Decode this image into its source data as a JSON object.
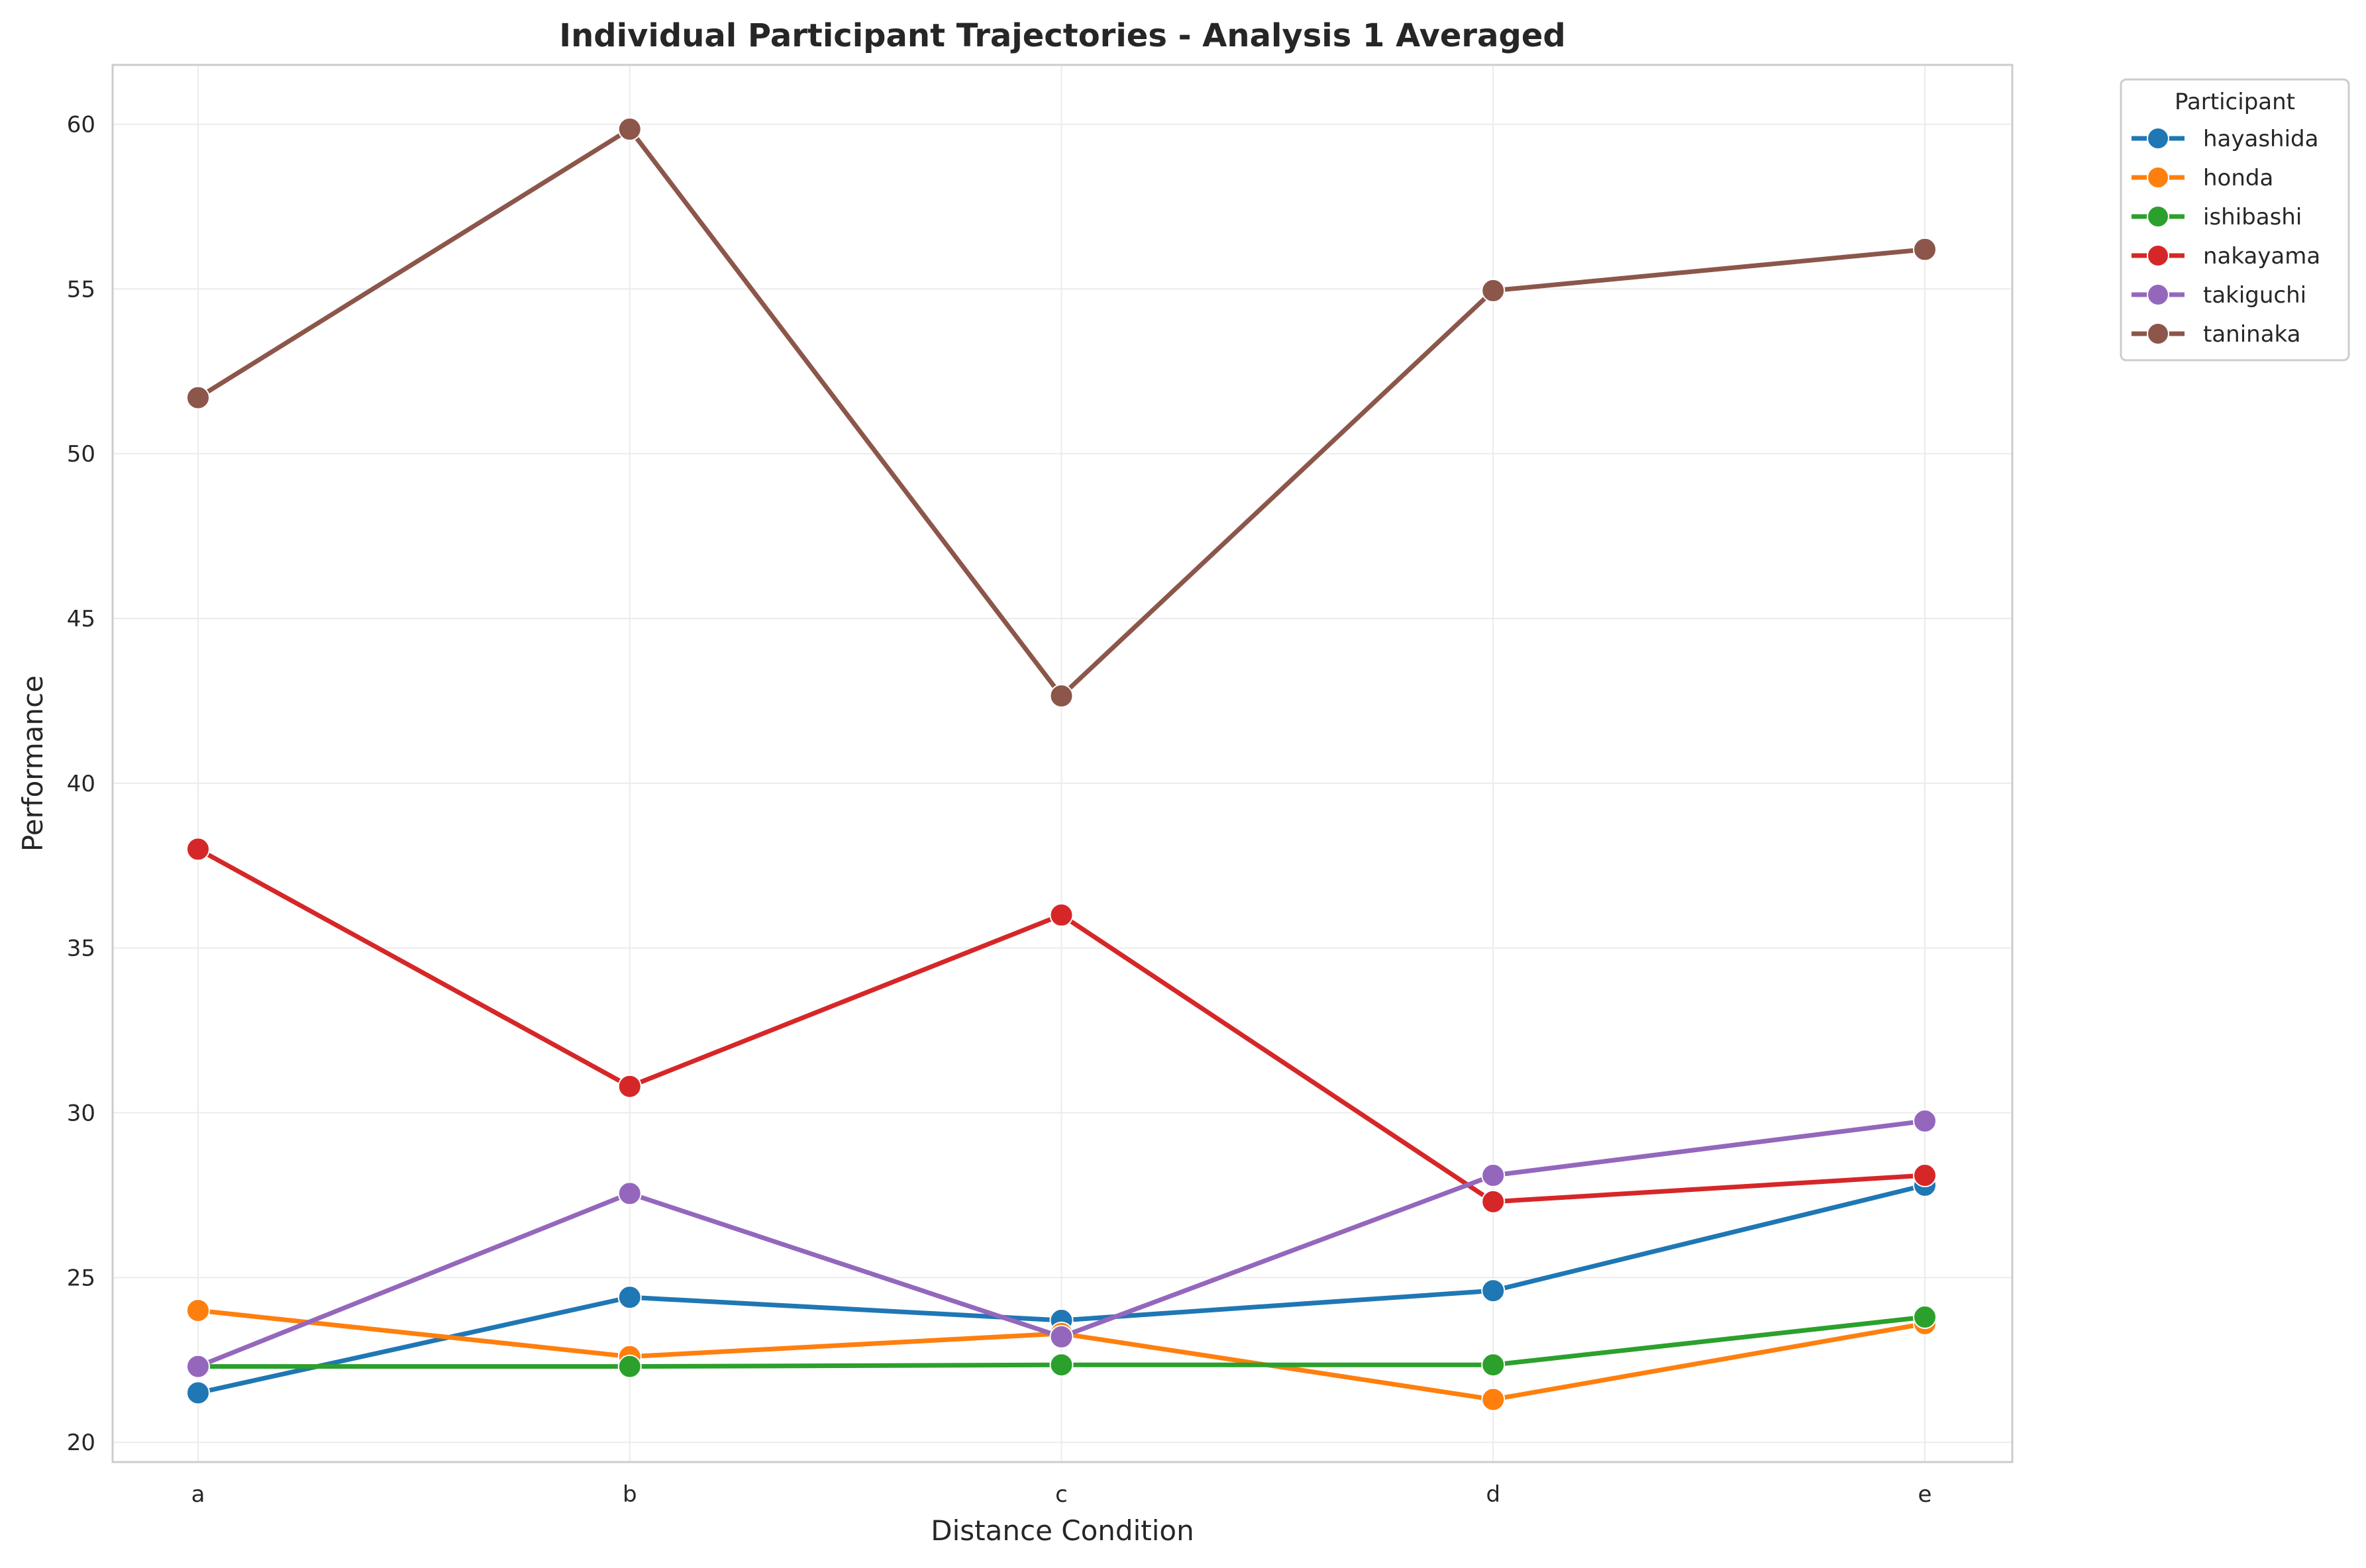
{
  "chart_data": {
    "type": "line",
    "title": "Individual Participant Trajectories - Analysis 1 Averaged",
    "xlabel": "Distance Condition",
    "ylabel": "Performance",
    "categories": [
      "a",
      "b",
      "c",
      "d",
      "e"
    ],
    "yticks": [
      20,
      25,
      30,
      35,
      40,
      45,
      50,
      55,
      60
    ],
    "ylim": [
      19.4,
      61.8
    ],
    "grid": true,
    "legend": {
      "title": "Participant",
      "placement": "outside-top-right"
    },
    "series": [
      {
        "name": "hayashida",
        "color": "#1f77b4",
        "values": [
          21.5,
          24.4,
          23.7,
          24.6,
          27.8
        ]
      },
      {
        "name": "honda",
        "color": "#ff7f0e",
        "values": [
          24.0,
          22.6,
          23.3,
          21.3,
          23.6
        ]
      },
      {
        "name": "ishibashi",
        "color": "#2ca02c",
        "values": [
          22.3,
          22.3,
          22.35,
          22.35,
          23.8
        ]
      },
      {
        "name": "nakayama",
        "color": "#d62728",
        "values": [
          38.0,
          30.8,
          36.0,
          27.3,
          28.1
        ]
      },
      {
        "name": "takiguchi",
        "color": "#9467bd",
        "values": [
          22.3,
          27.55,
          23.2,
          28.1,
          29.75
        ]
      },
      {
        "name": "taninaka",
        "color": "#8c564b",
        "values": [
          51.7,
          59.85,
          42.65,
          54.95,
          56.2
        ]
      }
    ]
  }
}
